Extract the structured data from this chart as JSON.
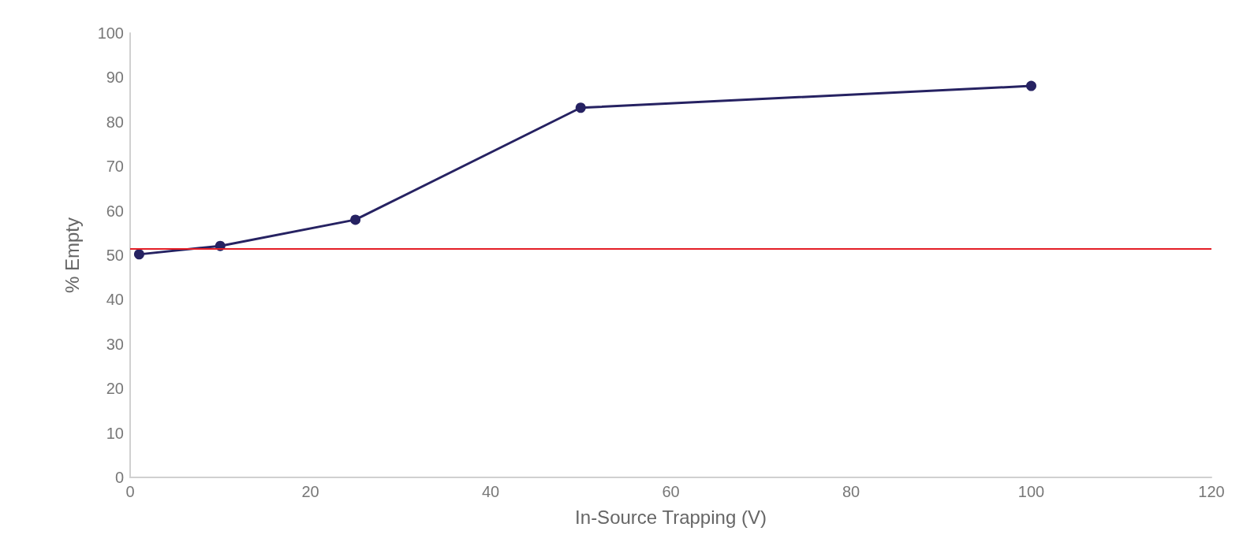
{
  "chart_data": {
    "type": "line",
    "xlabel": "In-Source Trapping (V)",
    "ylabel": "% Empty",
    "x": [
      1,
      10,
      25,
      50,
      100
    ],
    "series": [
      {
        "color": "#262262",
        "values": [
          50.2,
          52.1,
          58.0,
          83.2,
          88.1
        ]
      }
    ],
    "xlim": [
      0,
      120
    ],
    "xticks": [
      0,
      20,
      40,
      60,
      80,
      100,
      120
    ],
    "ylim": [
      0,
      100
    ],
    "yticks": [
      0,
      10,
      20,
      30,
      40,
      50,
      60,
      70,
      80,
      90,
      100
    ],
    "ref_lines": [
      {
        "axis": "y",
        "value": 51.4,
        "color": "#e41e26"
      }
    ],
    "grid": false,
    "marker": "circle",
    "line_style": "solid"
  }
}
